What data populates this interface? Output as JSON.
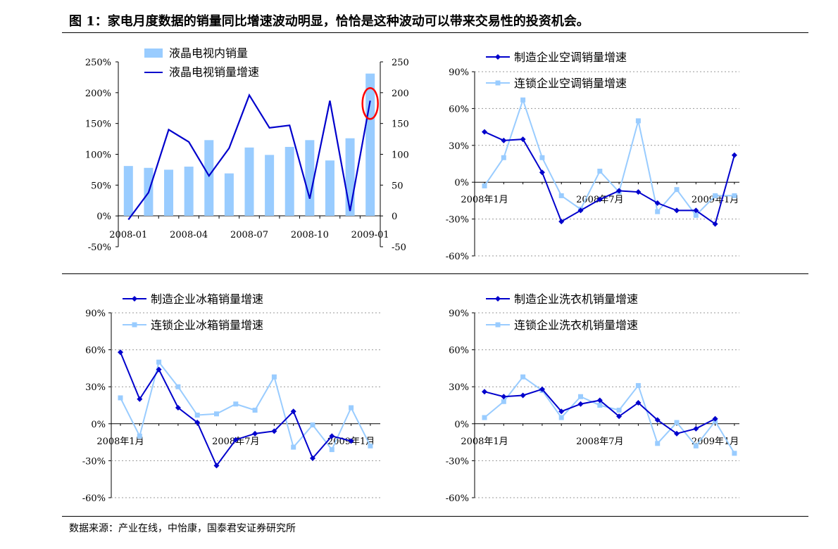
{
  "figure": {
    "title": "图 1：家电月度数据的销量同比增速波动明显，恰恰是这种波动可以带来交易性的投资机会。",
    "source": "数据来源：产业在线，中怡康，国泰君安证券研究所"
  },
  "colors": {
    "dark": "#0000cc",
    "light": "#99ccff",
    "highlight": "#ff0000"
  },
  "chart_data": [
    {
      "type": "bar",
      "legend": [
        "液晶电视内销量",
        "液晶电视销量增速"
      ],
      "x_tick_labels": [
        "2008-01",
        "2008-04",
        "2008-07",
        "2008-10",
        "2009-01"
      ],
      "left_y_ticks": [
        "250%",
        "200%",
        "150%",
        "100%",
        "50%",
        "0%",
        "-50%"
      ],
      "right_y_ticks": [
        "250",
        "200",
        "150",
        "100",
        "50",
        "0",
        "-50"
      ],
      "ylim": [
        -50,
        250
      ],
      "categories": [
        "2008-01",
        "2008-02",
        "2008-03",
        "2008-04",
        "2008-05",
        "2008-06",
        "2008-07",
        "2008-08",
        "2008-09",
        "2008-10",
        "2008-11",
        "2008-12",
        "2009-01"
      ],
      "series": [
        {
          "name": "液晶电视内销量",
          "type": "bar",
          "axis": "right",
          "values": [
            81,
            78,
            75,
            80,
            123,
            69,
            111,
            99,
            112,
            123,
            90,
            126,
            231
          ]
        },
        {
          "name": "液晶电视销量增速",
          "type": "line",
          "axis": "left",
          "values": [
            -6,
            38,
            140,
            120,
            65,
            110,
            196,
            143,
            147,
            28,
            187,
            8,
            187
          ]
        }
      ],
      "highlight_index": 12
    },
    {
      "type": "line",
      "legend": [
        "制造企业空调销量增速",
        "连锁企业空调销量增速"
      ],
      "y_ticks": [
        "90%",
        "60%",
        "30%",
        "0%",
        "-30%",
        "-60%"
      ],
      "x_tick_labels": [
        "2008年1月",
        "2008年7月",
        "2009年1月"
      ],
      "ylim": [
        -60,
        90
      ],
      "series": [
        {
          "name": "制造企业空调销量增速",
          "values": [
            41,
            34,
            35,
            8,
            -32,
            -23,
            -14,
            -7,
            -8,
            -17,
            -23,
            -23,
            -34,
            22
          ]
        },
        {
          "name": "连锁企业空调销量增速",
          "values": [
            -3,
            20,
            67,
            20,
            -11,
            -22,
            9,
            -8,
            50,
            -24,
            -6,
            -27,
            -11,
            -11
          ]
        }
      ]
    },
    {
      "type": "line",
      "legend": [
        "制造企业冰箱销量增速",
        "连锁企业冰箱销量增速"
      ],
      "y_ticks": [
        "90%",
        "60%",
        "30%",
        "0%",
        "-30%",
        "-60%"
      ],
      "x_tick_labels": [
        "2008年1月",
        "2008年7月",
        "2009年1月"
      ],
      "ylim": [
        -60,
        90
      ],
      "series": [
        {
          "name": "制造企业冰箱销量增速",
          "values": [
            58,
            20,
            44,
            13,
            1,
            -34,
            -13,
            -8,
            -6,
            10,
            -28,
            -10,
            -14
          ]
        },
        {
          "name": "连锁企业冰箱销量增速",
          "values": [
            21,
            -10,
            50,
            30,
            7,
            8,
            16,
            11,
            38,
            -19,
            -1,
            -21,
            13,
            -18
          ]
        }
      ]
    },
    {
      "type": "line",
      "legend": [
        "制造企业洗衣机销量增速",
        "连锁企业洗衣机销量增速"
      ],
      "y_ticks": [
        "90%",
        "60%",
        "30%",
        "0%",
        "-30%",
        "-60%"
      ],
      "x_tick_labels": [
        "2008年1月",
        "2008年7月",
        "2009年1月"
      ],
      "ylim": [
        -60,
        90
      ],
      "series": [
        {
          "name": "制造企业洗衣机销量增速",
          "values": [
            26,
            22,
            23,
            28,
            10,
            16,
            19,
            6,
            17,
            3,
            -8,
            -4,
            4
          ]
        },
        {
          "name": "连锁企业洗衣机销量增速",
          "values": [
            5,
            18,
            38,
            27,
            5,
            22,
            15,
            11,
            31,
            -16,
            1,
            -18,
            2,
            -24
          ]
        }
      ]
    }
  ]
}
